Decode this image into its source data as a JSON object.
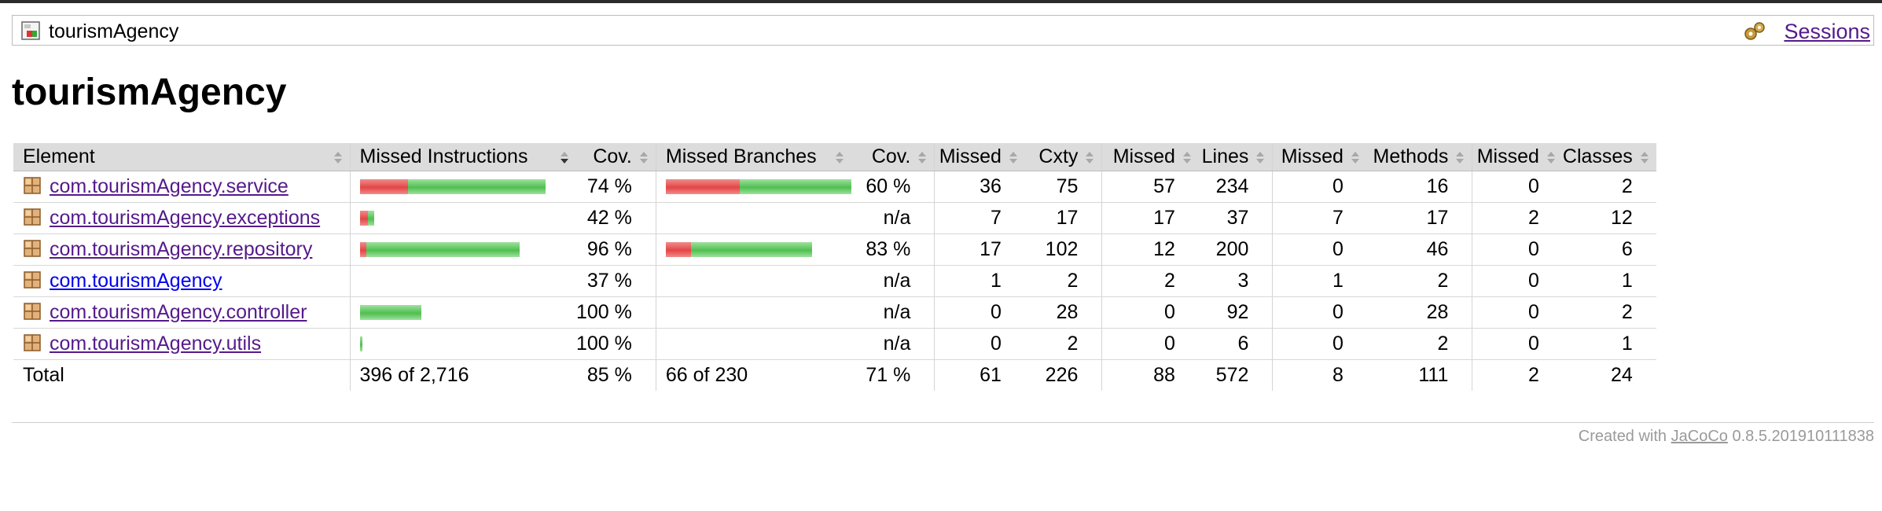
{
  "breadcrumb": {
    "label": "tourismAgency",
    "sessions_label": "Sessions"
  },
  "page": {
    "title": "tourismAgency"
  },
  "table": {
    "headers": [
      "Element",
      "Missed Instructions",
      "Cov.",
      "Missed Branches",
      "Cov.",
      "Missed",
      "Cxty",
      "Missed",
      "Lines",
      "Missed",
      "Methods",
      "Missed",
      "Classes"
    ],
    "rows": [
      {
        "element": "com.tourismAgency.service",
        "instr_cov": "74 %",
        "instr_cov_fraction": 0.74,
        "instr_total_relative": 1.0,
        "branch_cov": "60 %",
        "branch_cov_fraction": 0.6,
        "branch_total_relative": 1.0,
        "missed_cxty": "36",
        "cxty": "75",
        "missed_lines": "57",
        "lines": "234",
        "missed_methods": "0",
        "methods": "16",
        "missed_classes": "0",
        "classes": "2"
      },
      {
        "element": "com.tourismAgency.exceptions",
        "instr_cov": "42 %",
        "instr_cov_fraction": 0.42,
        "instr_total_relative": 0.075,
        "branch_cov": "n/a",
        "branch_cov_fraction": null,
        "branch_total_relative": 0,
        "missed_cxty": "7",
        "cxty": "17",
        "missed_lines": "17",
        "lines": "37",
        "missed_methods": "7",
        "methods": "17",
        "missed_classes": "2",
        "classes": "12"
      },
      {
        "element": "com.tourismAgency.repository",
        "instr_cov": "96 %",
        "instr_cov_fraction": 0.96,
        "instr_total_relative": 0.86,
        "branch_cov": "83 %",
        "branch_cov_fraction": 0.83,
        "branch_total_relative": 0.79,
        "missed_cxty": "17",
        "cxty": "102",
        "missed_lines": "12",
        "lines": "200",
        "missed_methods": "0",
        "methods": "46",
        "missed_classes": "0",
        "classes": "6"
      },
      {
        "element": "com.tourismAgency",
        "instr_cov": "37 %",
        "instr_cov_fraction": 0.37,
        "instr_total_relative": 0,
        "branch_cov": "n/a",
        "branch_cov_fraction": null,
        "branch_total_relative": 0,
        "missed_cxty": "1",
        "cxty": "2",
        "missed_lines": "2",
        "lines": "3",
        "missed_methods": "1",
        "methods": "2",
        "missed_classes": "0",
        "classes": "1"
      },
      {
        "element": "com.tourismAgency.controller",
        "instr_cov": "100 %",
        "instr_cov_fraction": 1.0,
        "instr_total_relative": 0.33,
        "branch_cov": "n/a",
        "branch_cov_fraction": null,
        "branch_total_relative": 0,
        "missed_cxty": "0",
        "cxty": "28",
        "missed_lines": "0",
        "lines": "92",
        "missed_methods": "0",
        "methods": "28",
        "missed_classes": "0",
        "classes": "2"
      },
      {
        "element": "com.tourismAgency.utils",
        "instr_cov": "100 %",
        "instr_cov_fraction": 1.0,
        "instr_total_relative": 0.012,
        "branch_cov": "n/a",
        "branch_cov_fraction": null,
        "branch_total_relative": 0,
        "missed_cxty": "0",
        "cxty": "2",
        "missed_lines": "0",
        "lines": "6",
        "missed_methods": "0",
        "methods": "2",
        "missed_classes": "0",
        "classes": "1"
      }
    ],
    "total": {
      "label": "Total",
      "missed_instructions": "396 of 2,716",
      "instr_cov": "85 %",
      "missed_branches": "66 of 230",
      "branch_cov": "71 %",
      "missed_cxty": "61",
      "cxty": "226",
      "missed_lines": "88",
      "lines": "572",
      "missed_methods": "8",
      "methods": "111",
      "missed_classes": "2",
      "classes": "24"
    }
  },
  "footer": {
    "prefix": "Created with",
    "link": "JaCoCo",
    "version": "0.8.5.201910111838"
  },
  "colors": {
    "missed": "#e44545",
    "covered": "#4fbf4f",
    "header_bg": "#dcdcdc",
    "visited_link": "#551a8b",
    "link": "#0000ee"
  }
}
